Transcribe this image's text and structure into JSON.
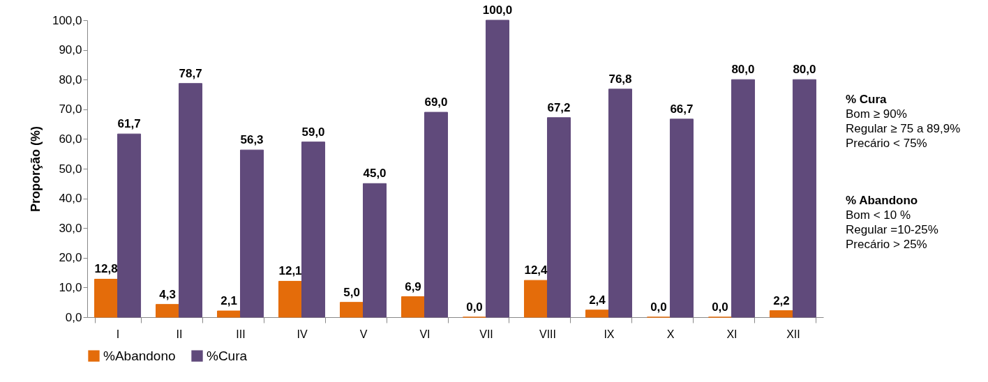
{
  "chart_data": {
    "type": "bar",
    "ylabel": "Proporção (%)",
    "categories": [
      "I",
      "II",
      "III",
      "IV",
      "V",
      "VI",
      "VII",
      "VIII",
      "IX",
      "X",
      "XI",
      "XII"
    ],
    "series": [
      {
        "name": "%Abandono",
        "color": "#e46c0a",
        "values": [
          12.8,
          4.3,
          2.1,
          12.1,
          5.0,
          6.9,
          0.0,
          12.4,
          2.4,
          0.0,
          0.0,
          2.2
        ],
        "value_labels": [
          "12,8",
          "4,3",
          "2,1",
          "12,1",
          "5,0",
          "6,9",
          "0,0",
          "12,4",
          "2,4",
          "0,0",
          "0,0",
          "2,2"
        ]
      },
      {
        "name": "%Cura",
        "color": "#604a7b",
        "values": [
          61.7,
          78.7,
          56.3,
          59.0,
          45.0,
          69.0,
          100.0,
          67.2,
          76.8,
          66.7,
          80.0,
          80.0
        ],
        "value_labels": [
          "61,7",
          "78,7",
          "56,3",
          "59,0",
          "45,0",
          "69,0",
          "100,0",
          "67,2",
          "76,8",
          "66,7",
          "80,0",
          "80,0"
        ]
      }
    ],
    "ylim": [
      0,
      100
    ],
    "yticks": [
      {
        "value": 0,
        "label": "0,0"
      },
      {
        "value": 10,
        "label": "10,0"
      },
      {
        "value": 20,
        "label": "20,0"
      },
      {
        "value": 30,
        "label": "30,0"
      },
      {
        "value": 40,
        "label": "40,0"
      },
      {
        "value": 50,
        "label": "50,0"
      },
      {
        "value": 60,
        "label": "60,0"
      },
      {
        "value": 70,
        "label": "70,0"
      },
      {
        "value": 80,
        "label": "80,0"
      },
      {
        "value": 90,
        "label": "90,0"
      },
      {
        "value": 100,
        "label": "100,0"
      }
    ],
    "grid": false,
    "legend": "bottom",
    "annotations": [
      "% Cura",
      "Bom ≥ 90%",
      "Regular ≥ 75 a 89,9%",
      "Precário < 75%",
      "% Abandono",
      "Bom < 10 %",
      "Regular =10-25%",
      "Precário > 25%"
    ]
  }
}
